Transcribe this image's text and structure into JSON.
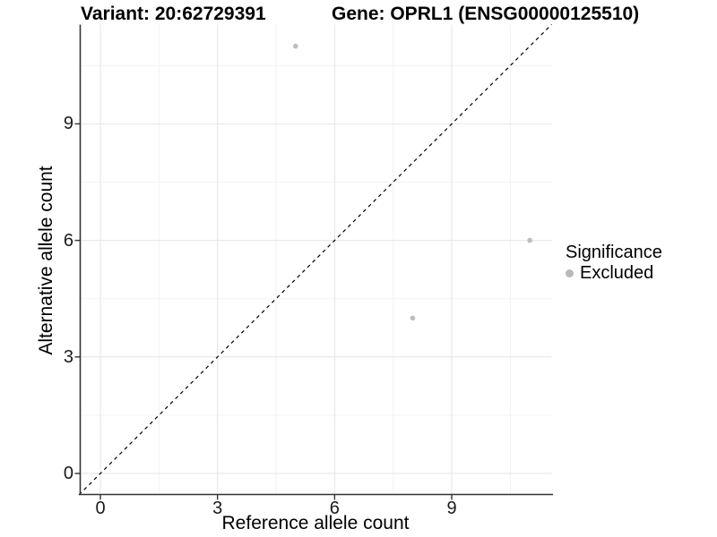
{
  "title": {
    "variant": "Variant: 20:62729391",
    "gene": "Gene: OPRL1 (ENSG00000125510)"
  },
  "axes": {
    "x_label": "Reference allele count",
    "y_label": "Alternative allele count"
  },
  "legend": {
    "title": "Significance",
    "items": [
      {
        "label": "Excluded",
        "color": "#b9b9b9"
      }
    ]
  },
  "chart_data": {
    "type": "scatter",
    "title": "Variant: 20:62729391    Gene: OPRL1 (ENSG00000125510)",
    "xlabel": "Reference allele count",
    "ylabel": "Alternative allele count",
    "xlim": [
      -0.55,
      11.55
    ],
    "ylim": [
      -0.55,
      11.55
    ],
    "x_ticks": [
      0,
      3,
      6,
      9
    ],
    "y_ticks": [
      0,
      3,
      6,
      9
    ],
    "x_minor_ticks": [
      1.5,
      4.5,
      7.5,
      10.5
    ],
    "y_minor_ticks": [
      1.5,
      4.5,
      7.5,
      10.5
    ],
    "grid": "major+minor",
    "legend_title": "Significance",
    "legend_position": "right",
    "series": [
      {
        "name": "Excluded",
        "color": "#bdbdbd",
        "points": [
          {
            "x": 5,
            "y": 11
          },
          {
            "x": 8,
            "y": 4
          },
          {
            "x": 11,
            "y": 6
          }
        ]
      }
    ],
    "reference_line": {
      "kind": "identity y=x",
      "style": "dashed",
      "color": "#000000"
    }
  },
  "colors": {
    "background": "#ffffff",
    "grid_major": "#e4e4e4",
    "grid_minor": "#f2f2f2",
    "axis_line": "#333333",
    "point": "#bdbdbd",
    "dashed_line": "#000000"
  }
}
